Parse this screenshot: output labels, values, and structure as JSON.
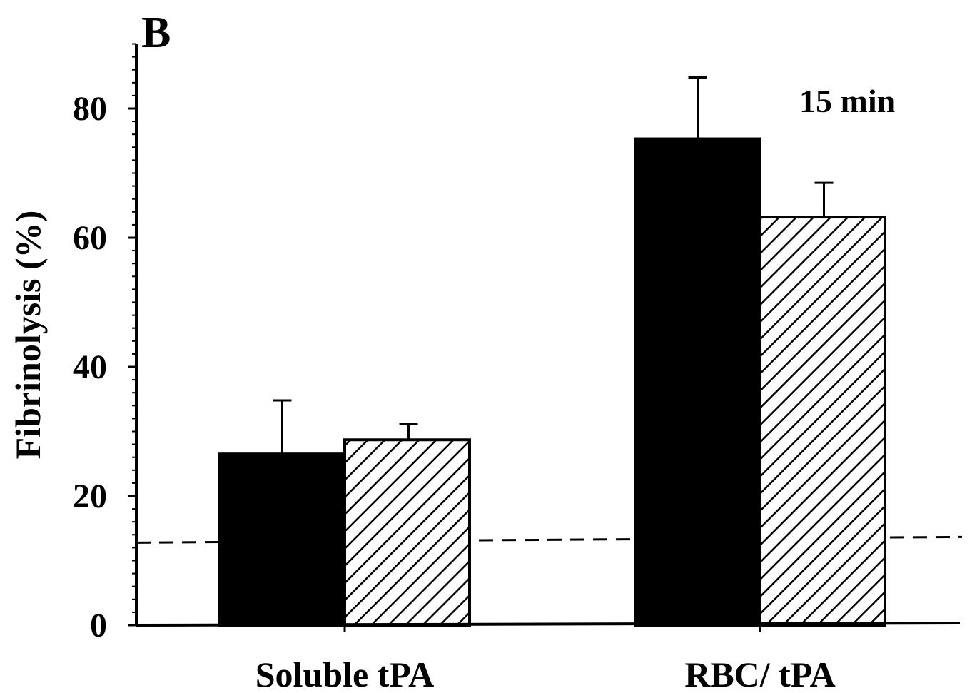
{
  "chart_data": {
    "type": "bar",
    "panel_label": "B",
    "annotation": "15 min",
    "ylabel": "Fibrinolysis (%)",
    "xlabel": "",
    "ylim": [
      0,
      90
    ],
    "yticks": [
      0,
      20,
      40,
      60,
      80
    ],
    "y_minor_tick_step": 2,
    "grid": false,
    "legend": "none",
    "categories": [
      "Soluble tPA",
      "RBC/ tPA"
    ],
    "series": [
      {
        "fill": "solid",
        "color": "#000000",
        "values": [
          26.5,
          75.3
        ],
        "errors": [
          8.3,
          9.5
        ]
      },
      {
        "fill": "hatched",
        "color": "#000000",
        "values": [
          28.7,
          63.2
        ],
        "errors": [
          2.5,
          5.3
        ]
      }
    ],
    "reference_line": {
      "value": 13,
      "style": "dashed",
      "color": "#000000"
    }
  }
}
